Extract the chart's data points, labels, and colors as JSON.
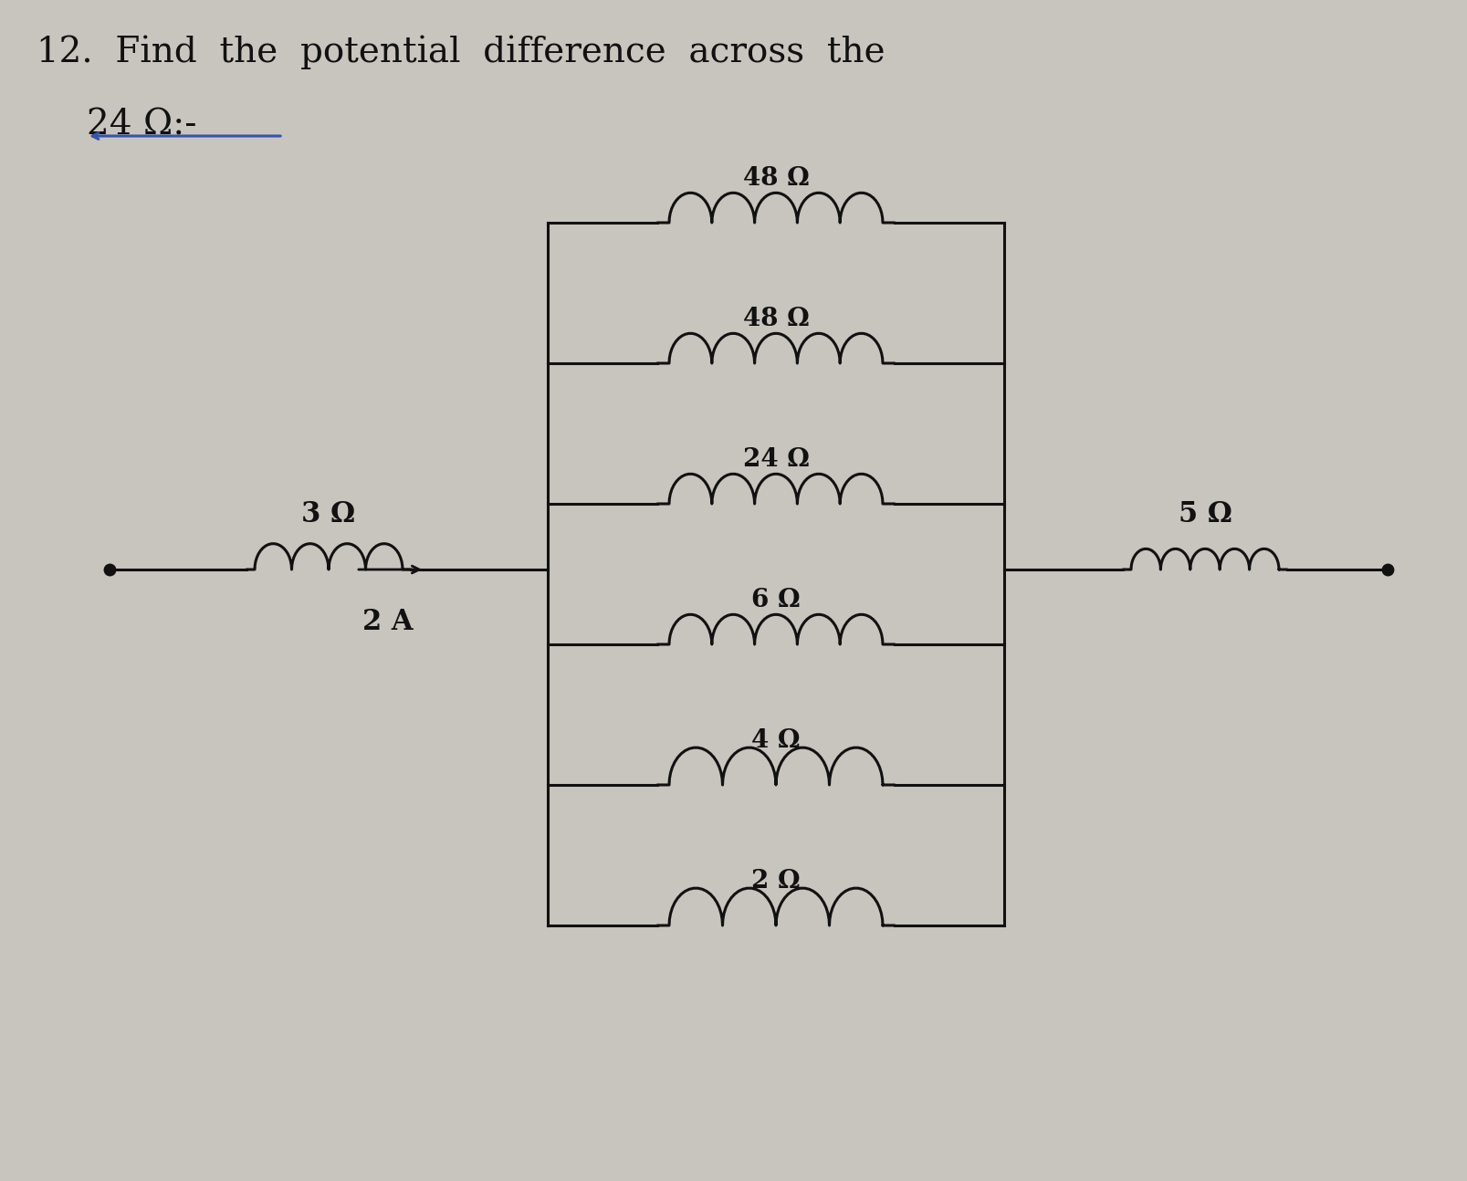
{
  "title_line1": "12.  Find  the  potential  difference  across  the",
  "title_line2": "24 Ω:-",
  "bg_color": "#c8c4be",
  "resistors_parallel": [
    "48 Ω",
    "48 Ω",
    "24 Ω",
    "6 Ω",
    "4 Ω",
    "2 Ω"
  ],
  "resistor_left": "3 Ω",
  "current_label": "2 A",
  "resistor_right": "5 Ω",
  "line_color": "#111111",
  "text_color": "#111111",
  "underline_color": "#3355aa",
  "title_fontsize": 28,
  "label_fontsize": 22,
  "circuit_label_fontsize": 20
}
